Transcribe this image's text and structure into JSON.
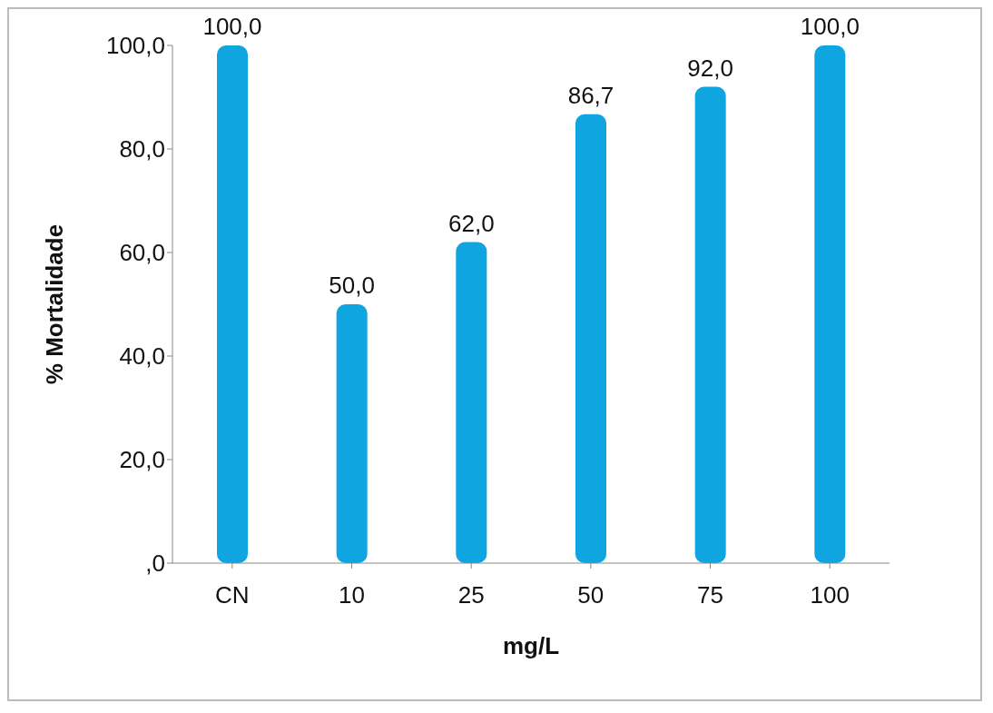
{
  "chart_data": {
    "type": "bar",
    "xlabel": "mg/L",
    "ylabel": "% Mortalidade",
    "categories": [
      "CN",
      "10",
      "25",
      "50",
      "75",
      "100"
    ],
    "values": [
      100,
      50,
      62,
      86.7,
      92,
      100
    ],
    "value_labels": [
      "100,0",
      "50,0",
      "62,0",
      "86,7",
      "92,0",
      "100,0"
    ],
    "color": "#0ea5e0",
    "ylim": [
      0,
      100
    ],
    "yticks": [
      {
        "value": 0,
        "label": ",0"
      },
      {
        "value": 20,
        "label": "20,0"
      },
      {
        "value": 40,
        "label": "40,0"
      },
      {
        "value": 60,
        "label": "60,0"
      },
      {
        "value": 80,
        "label": "80,0"
      },
      {
        "value": 100,
        "label": "100,0"
      }
    ],
    "grid": false,
    "legend": false
  }
}
